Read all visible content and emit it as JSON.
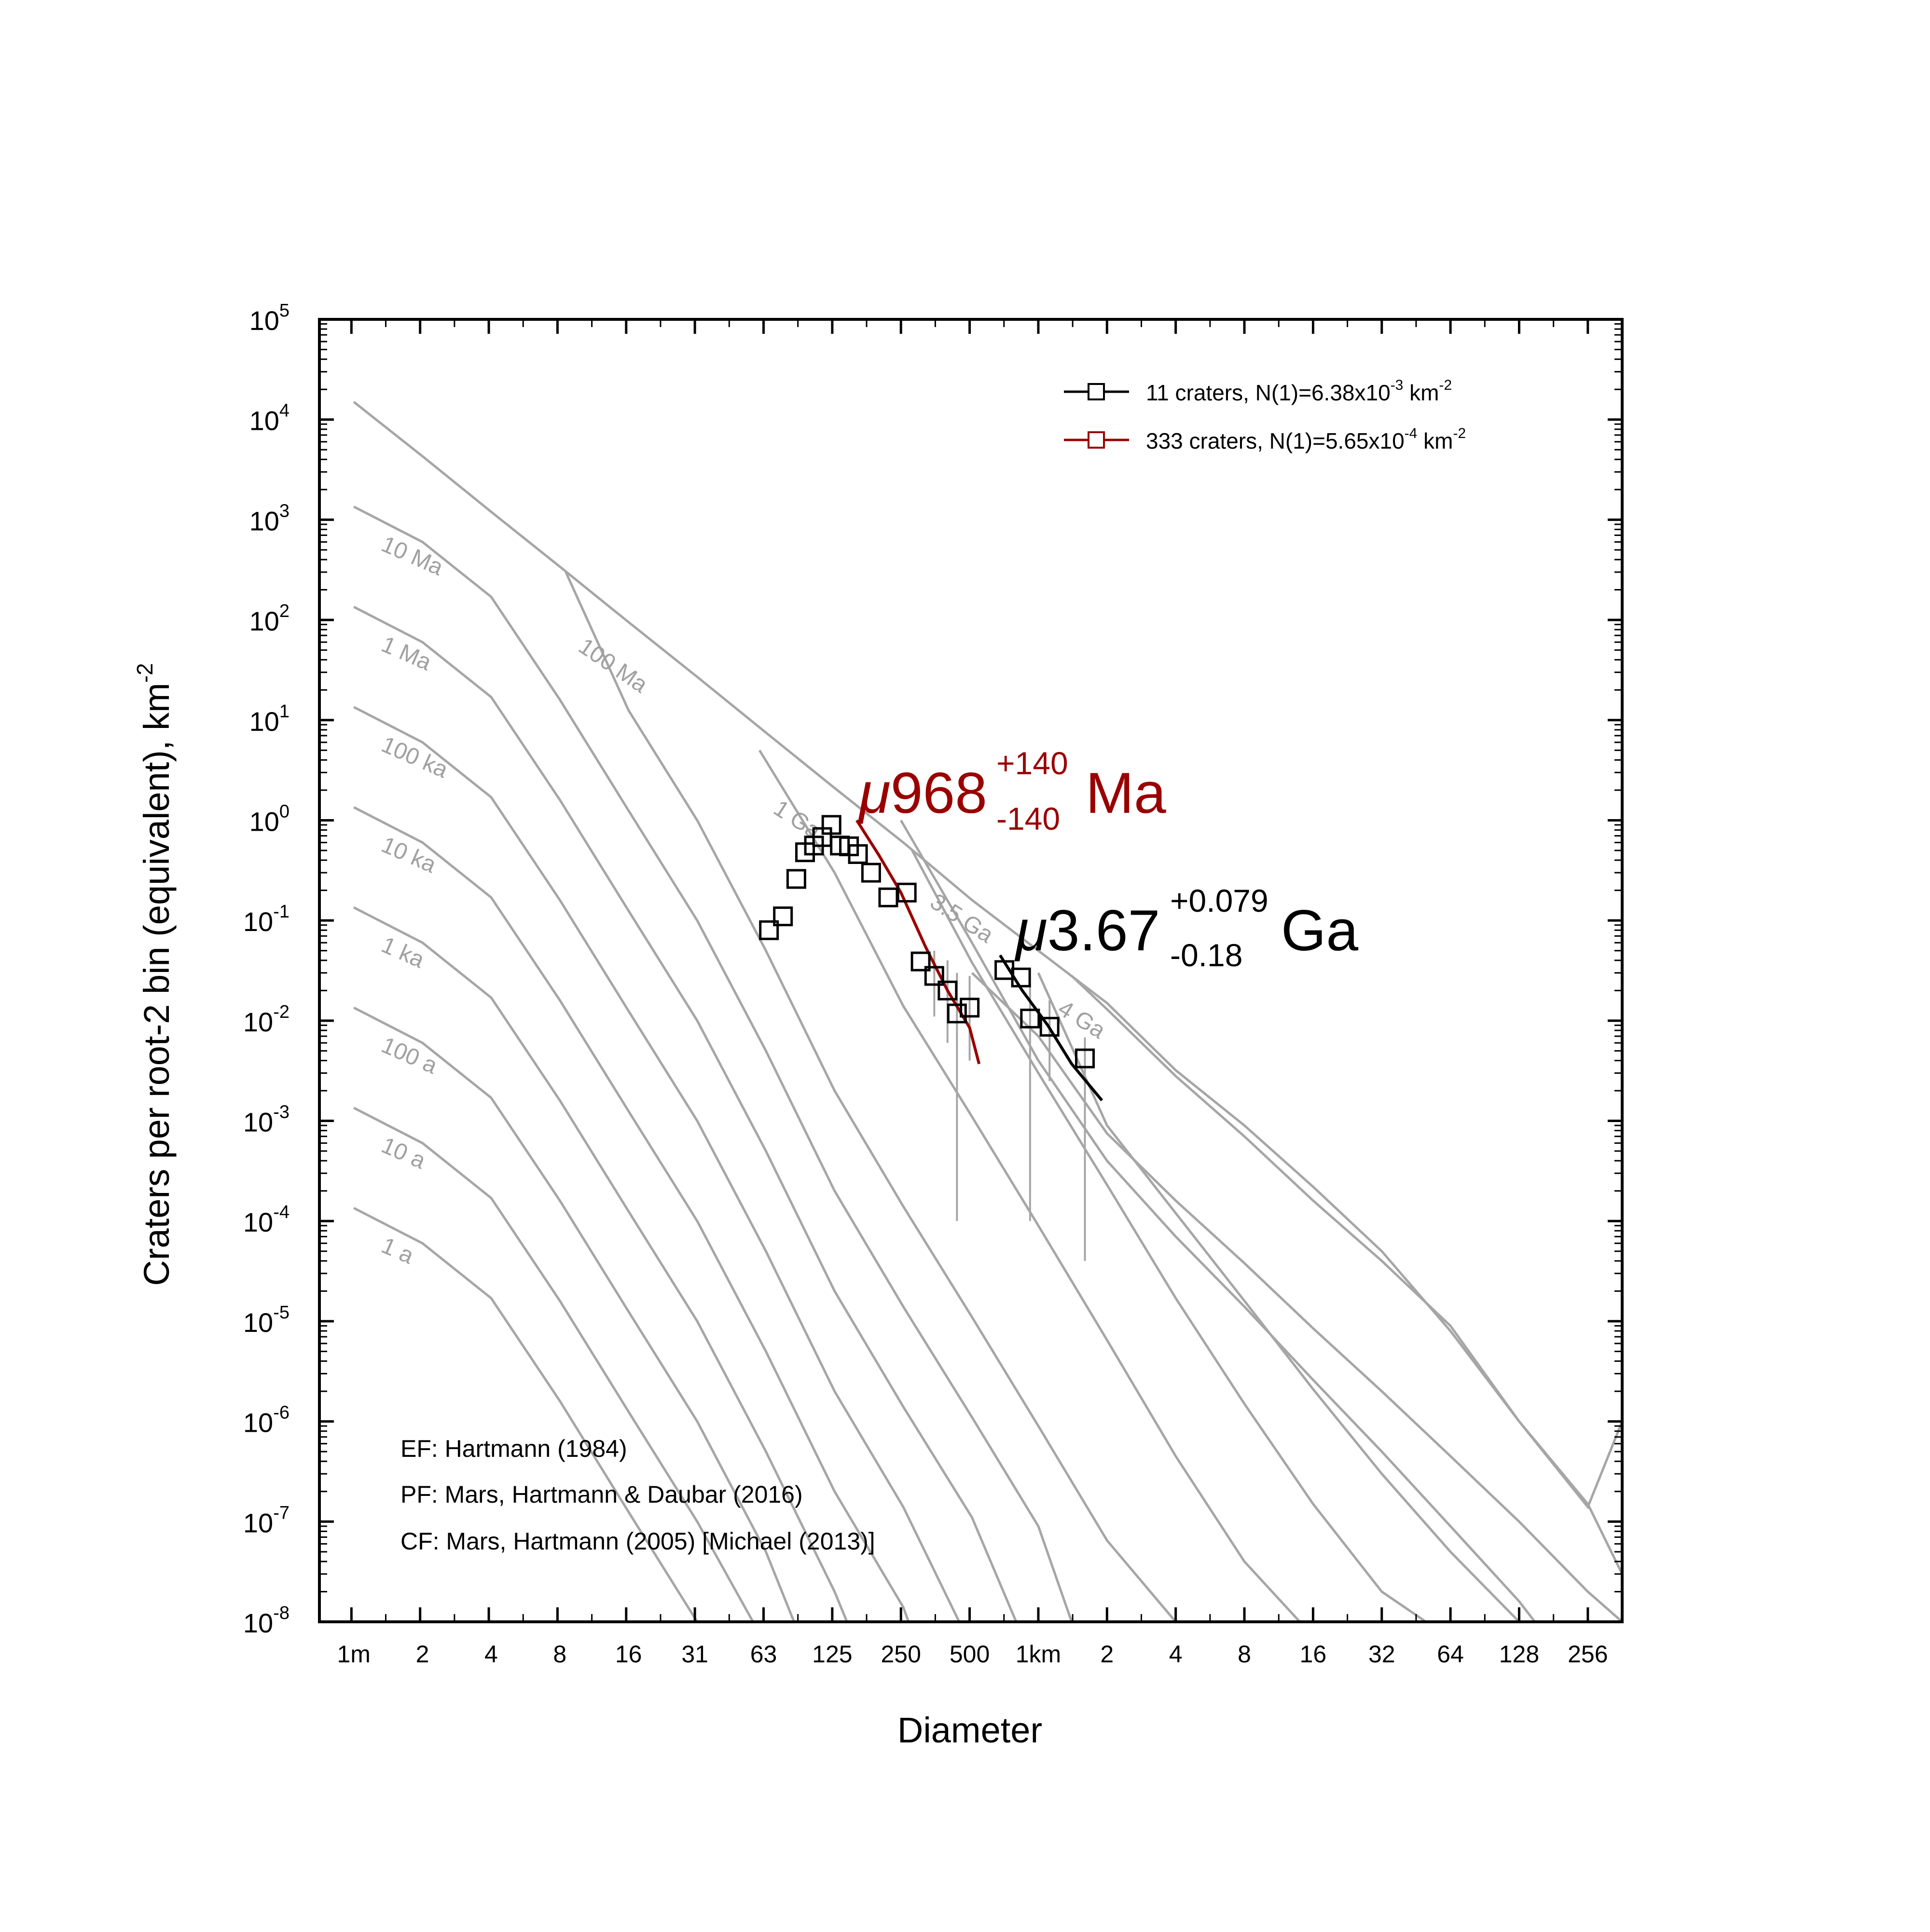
{
  "colors": {
    "isochron": "#a6a6a6",
    "red_fit": "#990000",
    "black_fit": "#000000",
    "errorbar": "#a6a6a6"
  },
  "chart_data": {
    "type": "scatter",
    "xlabel": "Diameter",
    "ylabel": "Craters per root-2 bin (equivalent), km",
    "ylabel_exp": "-2",
    "x_scale": "log2",
    "y_scale": "log10",
    "x_range_km": [
      0.000707,
      362
    ],
    "y_range": [
      1e-08,
      100000.0
    ],
    "y_ticks": [
      {
        "base": "10",
        "exp": "5",
        "value": 100000.0
      },
      {
        "base": "10",
        "exp": "4",
        "value": 10000.0
      },
      {
        "base": "10",
        "exp": "3",
        "value": 1000.0
      },
      {
        "base": "10",
        "exp": "2",
        "value": 100.0
      },
      {
        "base": "10",
        "exp": "1",
        "value": 10.0
      },
      {
        "base": "10",
        "exp": "0",
        "value": 1.0
      },
      {
        "base": "10",
        "exp": "-1",
        "value": 0.1
      },
      {
        "base": "10",
        "exp": "-2",
        "value": 0.01
      },
      {
        "base": "10",
        "exp": "-3",
        "value": 0.001
      },
      {
        "base": "10",
        "exp": "-4",
        "value": 0.0001
      },
      {
        "base": "10",
        "exp": "-5",
        "value": 1e-05
      },
      {
        "base": "10",
        "exp": "-6",
        "value": 1e-06
      },
      {
        "base": "10",
        "exp": "-7",
        "value": 1e-07
      },
      {
        "base": "10",
        "exp": "-8",
        "value": 1e-08
      }
    ],
    "x_ticks": [
      {
        "label": "1m",
        "value_km": 0.001
      },
      {
        "label": "2",
        "value_km": 0.002
      },
      {
        "label": "4",
        "value_km": 0.004
      },
      {
        "label": "8",
        "value_km": 0.008
      },
      {
        "label": "16",
        "value_km": 0.016
      },
      {
        "label": "31",
        "value_km": 0.03125
      },
      {
        "label": "63",
        "value_km": 0.0625
      },
      {
        "label": "125",
        "value_km": 0.125
      },
      {
        "label": "250",
        "value_km": 0.25
      },
      {
        "label": "500",
        "value_km": 0.5
      },
      {
        "label": "1km",
        "value_km": 1
      },
      {
        "label": "2",
        "value_km": 2
      },
      {
        "label": "4",
        "value_km": 4
      },
      {
        "label": "8",
        "value_km": 8
      },
      {
        "label": "16",
        "value_km": 16
      },
      {
        "label": "32",
        "value_km": 32
      },
      {
        "label": "64",
        "value_km": 64
      },
      {
        "label": "128",
        "value_km": 128
      },
      {
        "label": "256",
        "value_km": 256
      }
    ],
    "isochrons": [
      {
        "label": "1 a",
        "label_pos": [
          0.0013,
          5e-05
        ],
        "points": [
          [
            0.001,
            0.000135
          ],
          [
            0.002,
            6e-05
          ],
          [
            0.004,
            1.7e-05
          ],
          [
            0.008,
            1.6e-06
          ],
          [
            0.016,
            1.25e-07
          ],
          [
            0.032,
            1e-08
          ]
        ]
      },
      {
        "label": "10 a",
        "label_pos": [
          0.0013,
          0.0005
        ],
        "points": [
          [
            0.001,
            0.00135
          ],
          [
            0.002,
            0.0006
          ],
          [
            0.004,
            0.00017
          ],
          [
            0.008,
            1.6e-05
          ],
          [
            0.016,
            1.25e-06
          ],
          [
            0.032,
            1e-07
          ],
          [
            0.0562,
            1e-08
          ]
        ]
      },
      {
        "label": "100 a",
        "label_pos": [
          0.0013,
          0.005
        ],
        "points": [
          [
            0.001,
            0.0135
          ],
          [
            0.002,
            0.006
          ],
          [
            0.004,
            0.0017
          ],
          [
            0.008,
            0.00016
          ],
          [
            0.016,
            1.25e-05
          ],
          [
            0.032,
            1e-06
          ],
          [
            0.064,
            5e-08
          ],
          [
            0.085,
            1e-08
          ]
        ]
      },
      {
        "label": "1 ka",
        "label_pos": [
          0.0013,
          0.05
        ],
        "points": [
          [
            0.001,
            0.135
          ],
          [
            0.002,
            0.06
          ],
          [
            0.004,
            0.017
          ],
          [
            0.008,
            0.0016
          ],
          [
            0.016,
            0.000125
          ],
          [
            0.032,
            1e-05
          ],
          [
            0.064,
            5e-07
          ],
          [
            0.128,
            2e-08
          ],
          [
            0.145,
            1e-08
          ]
        ]
      },
      {
        "label": "10 ka",
        "label_pos": [
          0.0013,
          0.5
        ],
        "points": [
          [
            0.001,
            1.35
          ],
          [
            0.002,
            0.6
          ],
          [
            0.004,
            0.17
          ],
          [
            0.008,
            0.016
          ],
          [
            0.016,
            0.00125
          ],
          [
            0.032,
            0.0001
          ],
          [
            0.064,
            5e-06
          ],
          [
            0.128,
            2e-07
          ],
          [
            0.256,
            1.4e-08
          ],
          [
            0.27,
            1e-08
          ]
        ]
      },
      {
        "label": "100 ka",
        "label_pos": [
          0.0013,
          5
        ],
        "points": [
          [
            0.001,
            13.5
          ],
          [
            0.002,
            6.0
          ],
          [
            0.004,
            1.7
          ],
          [
            0.008,
            0.16
          ],
          [
            0.016,
            0.0125
          ],
          [
            0.032,
            0.001
          ],
          [
            0.064,
            5e-05
          ],
          [
            0.128,
            2e-06
          ],
          [
            0.256,
            1.4e-07
          ],
          [
            0.45,
            1e-08
          ]
        ]
      },
      {
        "label": "1 Ma",
        "label_pos": [
          0.0013,
          50
        ],
        "points": [
          [
            0.001,
            135
          ],
          [
            0.002,
            60
          ],
          [
            0.004,
            17
          ],
          [
            0.008,
            1.6
          ],
          [
            0.016,
            0.125
          ],
          [
            0.032,
            0.01
          ],
          [
            0.064,
            0.0005
          ],
          [
            0.128,
            2e-05
          ],
          [
            0.256,
            1.4e-06
          ],
          [
            0.512,
            1.1e-07
          ],
          [
            0.8,
            1e-08
          ]
        ]
      },
      {
        "label": "10 Ma",
        "label_pos": [
          0.0013,
          500
        ],
        "points": [
          [
            0.001,
            1350
          ],
          [
            0.002,
            600
          ],
          [
            0.004,
            170
          ],
          [
            0.008,
            16
          ],
          [
            0.016,
            1.25
          ],
          [
            0.032,
            0.1
          ],
          [
            0.064,
            0.005
          ],
          [
            0.128,
            0.0002
          ],
          [
            0.256,
            1.4e-05
          ],
          [
            0.512,
            1.1e-06
          ],
          [
            1.0,
            9e-08
          ],
          [
            1.4,
            1e-08
          ]
        ]
      },
      {
        "label": "100 Ma",
        "label_pos": [
          0.0095,
          50
        ],
        "points": [
          [
            0.0085,
            300
          ],
          [
            0.016,
            12.5
          ],
          [
            0.032,
            1.0
          ],
          [
            0.064,
            0.05
          ],
          [
            0.128,
            0.002
          ],
          [
            0.256,
            0.00014
          ],
          [
            0.512,
            1.1e-05
          ],
          [
            1.0,
            9e-07
          ],
          [
            2.0,
            6.5e-08
          ],
          [
            4.0,
            1e-08
          ]
        ]
      },
      {
        "label": "1 Ga",
        "label_pos": [
          0.068,
          1.2
        ],
        "points": [
          [
            0.06,
            5.0
          ],
          [
            0.128,
            0.3
          ],
          [
            0.256,
            0.014
          ],
          [
            0.512,
            0.0011
          ],
          [
            1.0,
            9e-05
          ],
          [
            2.0,
            6.5e-06
          ],
          [
            4.0,
            4.5e-07
          ],
          [
            8.0,
            4e-08
          ],
          [
            14.0,
            1e-08
          ]
        ]
      },
      {
        "label": "3.5 Ga",
        "label_pos": [
          0.33,
          0.14
        ],
        "points": [
          [
            0.28,
            0.5
          ],
          [
            0.512,
            0.038
          ],
          [
            1.0,
            0.003
          ],
          [
            2.0,
            0.00023
          ],
          [
            4.0,
            1.7e-05
          ],
          [
            8.0,
            1.5e-06
          ],
          [
            16.0,
            1.5e-07
          ],
          [
            32.0,
            2e-08
          ],
          [
            50.0,
            1e-08
          ]
        ]
      },
      {
        "label": "4 Ga",
        "label_pos": [
          1.2,
          0.012
        ],
        "points": [
          [
            1.0,
            0.03
          ],
          [
            2.0,
            0.0009
          ],
          [
            4.0,
            0.00012
          ],
          [
            8.0,
            1.6e-05
          ],
          [
            16.0,
            2.1e-06
          ],
          [
            32.0,
            3e-07
          ],
          [
            64.0,
            5e-08
          ],
          [
            128.0,
            1e-08
          ]
        ]
      },
      {
        "label": "",
        "label_pos": null,
        "points": [
          [
            0.001,
            15000
          ],
          [
            0.002,
            4300
          ],
          [
            0.004,
            1200
          ],
          [
            0.008,
            340
          ],
          [
            0.016,
            95
          ],
          [
            0.032,
            27
          ],
          [
            0.064,
            7.5
          ],
          [
            0.128,
            2.1
          ],
          [
            0.256,
            0.6
          ],
          [
            0.512,
            0.16
          ],
          [
            1.0,
            0.05
          ],
          [
            2.0,
            0.015
          ],
          [
            4.0,
            0.0032
          ],
          [
            8.0,
            0.0009
          ],
          [
            16.0,
            0.00022
          ],
          [
            32.0,
            5e-05
          ],
          [
            64.0,
            8e-06
          ],
          [
            128.0,
            1e-06
          ],
          [
            256.0,
            1.5e-07
          ],
          [
            362,
            3e-08
          ]
        ]
      },
      {
        "label": "",
        "label_pos": null,
        "points": [
          [
            1.4,
            0.028
          ],
          [
            2.0,
            0.013
          ],
          [
            4.0,
            0.0028
          ],
          [
            8.0,
            0.0007
          ],
          [
            16.0,
            0.00016
          ],
          [
            32.0,
            4e-05
          ],
          [
            64.0,
            9e-06
          ],
          [
            128.0,
            1e-06
          ],
          [
            256.0,
            1.4e-07
          ],
          [
            362,
            1e-06
          ]
        ]
      },
      {
        "label": "",
        "label_pos": null,
        "points": [
          [
            0.512,
            0.03
          ],
          [
            1.0,
            0.007
          ],
          [
            2.0,
            0.00075
          ],
          [
            4.0,
            0.00016
          ],
          [
            8.0,
            3.8e-05
          ],
          [
            16.0,
            8.5e-06
          ],
          [
            32.0,
            2e-06
          ],
          [
            64.0,
            4.5e-07
          ],
          [
            128.0,
            1e-07
          ],
          [
            256.0,
            2e-08
          ],
          [
            362,
            1e-08
          ]
        ]
      },
      {
        "label": "",
        "label_pos": null,
        "points": [
          [
            0.25,
            1.0
          ],
          [
            0.512,
            0.06
          ],
          [
            1.0,
            0.004
          ],
          [
            2.0,
            0.0004
          ],
          [
            4.0,
            7e-05
          ],
          [
            8.0,
            1.4e-05
          ],
          [
            16.0,
            2.6e-06
          ],
          [
            32.0,
            5e-07
          ],
          [
            64.0,
            9e-08
          ],
          [
            128.0,
            1.6e-08
          ],
          [
            150,
            1e-08
          ]
        ]
      }
    ],
    "series": [
      {
        "name": "11 craters, N(1)=6.38x10",
        "legend_exp": "-3",
        "legend_unit": "km",
        "legend_unit_exp": "-2",
        "color": "#000000",
        "points": [
          {
            "d": 0.71,
            "n": 0.032
          },
          {
            "d": 0.84,
            "n": 0.027
          },
          {
            "d": 0.92,
            "n": 0.0105
          },
          {
            "d": 1.12,
            "n": 0.0087
          },
          {
            "d": 1.6,
            "n": 0.0042
          }
        ],
        "errorbars": [
          {
            "d": 0.92,
            "lo": 0.0001,
            "hi": 0.023
          },
          {
            "d": 1.12,
            "lo": 0.0025,
            "hi": 0.016
          },
          {
            "d": 1.6,
            "lo": 4e-05,
            "hi": 0.0068
          }
        ],
        "fit": [
          [
            0.68,
            0.045
          ],
          [
            0.85,
            0.02
          ],
          [
            1.1,
            0.009
          ],
          [
            1.4,
            0.0037
          ],
          [
            1.9,
            0.0016
          ]
        ],
        "age_value": "3.67",
        "age_plus": "+0.079",
        "age_minus": "-0.18",
        "age_unit": "Ga"
      },
      {
        "name": "333 craters, N(1)=5.65x10",
        "legend_exp": "-4",
        "legend_unit": "km",
        "legend_unit_exp": "-2",
        "color": "#990000",
        "points": [
          {
            "d": 0.066,
            "n": 0.08
          },
          {
            "d": 0.076,
            "n": 0.11
          },
          {
            "d": 0.087,
            "n": 0.26
          },
          {
            "d": 0.095,
            "n": 0.48
          },
          {
            "d": 0.104,
            "n": 0.56
          },
          {
            "d": 0.113,
            "n": 0.68
          },
          {
            "d": 0.124,
            "n": 0.9
          },
          {
            "d": 0.135,
            "n": 0.56
          },
          {
            "d": 0.148,
            "n": 0.55
          },
          {
            "d": 0.162,
            "n": 0.46
          },
          {
            "d": 0.185,
            "n": 0.3
          },
          {
            "d": 0.22,
            "n": 0.17
          },
          {
            "d": 0.265,
            "n": 0.19
          },
          {
            "d": 0.305,
            "n": 0.039
          },
          {
            "d": 0.35,
            "n": 0.028
          },
          {
            "d": 0.4,
            "n": 0.02
          },
          {
            "d": 0.44,
            "n": 0.0118
          },
          {
            "d": 0.5,
            "n": 0.0135
          }
        ],
        "errorbars": [
          {
            "d": 0.35,
            "lo": 0.011,
            "hi": 0.05
          },
          {
            "d": 0.4,
            "lo": 0.006,
            "hi": 0.04
          },
          {
            "d": 0.44,
            "lo": 0.0001,
            "hi": 0.03
          },
          {
            "d": 0.5,
            "lo": 0.004,
            "hi": 0.028
          }
        ],
        "fit": [
          [
            0.16,
            1.0
          ],
          [
            0.2,
            0.45
          ],
          [
            0.25,
            0.19
          ],
          [
            0.32,
            0.055
          ],
          [
            0.4,
            0.02
          ],
          [
            0.5,
            0.0085
          ],
          [
            0.55,
            0.0037
          ]
        ],
        "age_value": "968",
        "age_plus": "+140",
        "age_minus": "-140",
        "age_unit": "Ma"
      }
    ],
    "age_symbol": "μ",
    "references": [
      "EF: Hartmann (1984)",
      "PF: Mars, Hartmann & Daubar (2016)",
      "CF: Mars, Hartmann (2005) [Michael (2013)]"
    ],
    "legend_position": "top-right",
    "grid": false
  }
}
